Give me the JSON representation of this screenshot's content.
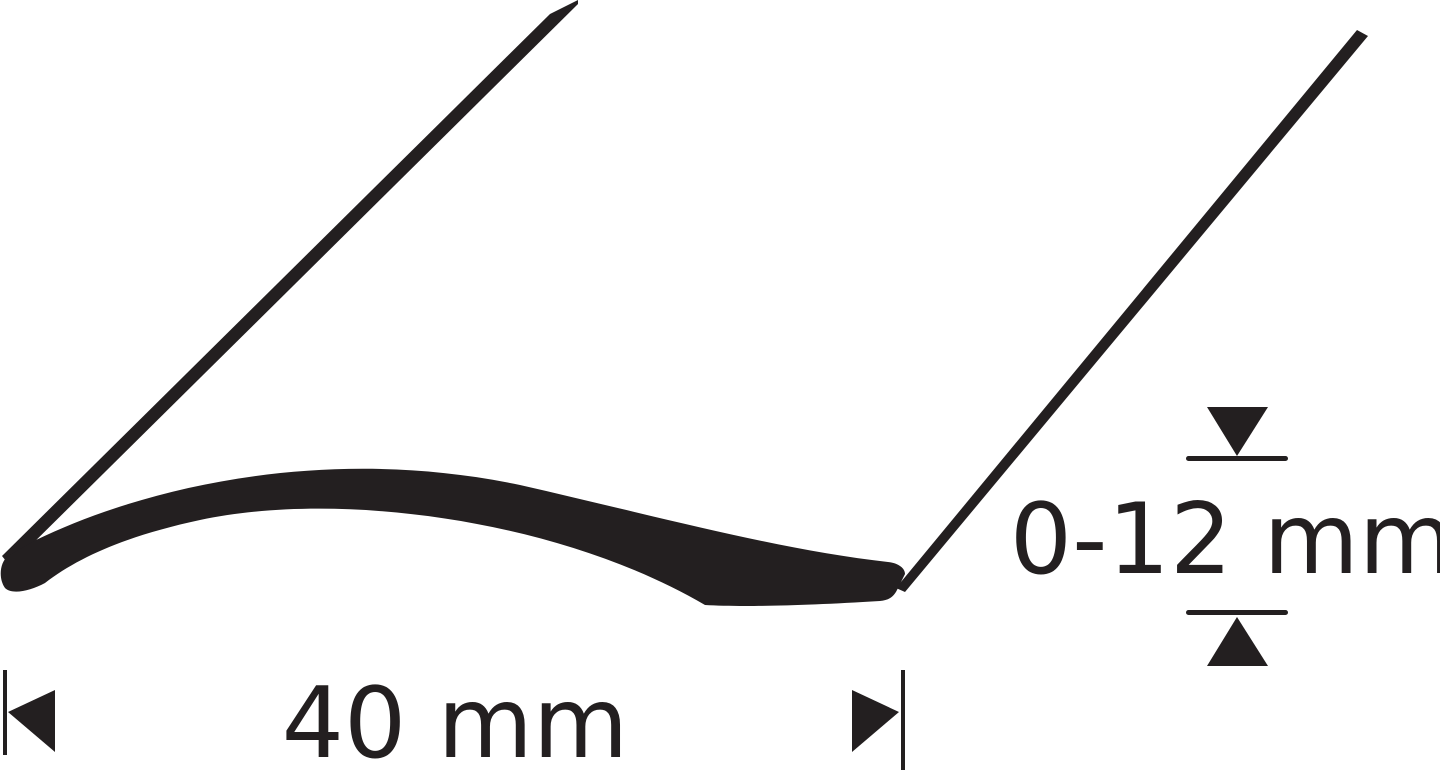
{
  "diagram": {
    "width_label": "40 mm",
    "height_label": "0-12 mm",
    "colors": {
      "ink": "#231f20",
      "background": "#ffffff"
    }
  }
}
